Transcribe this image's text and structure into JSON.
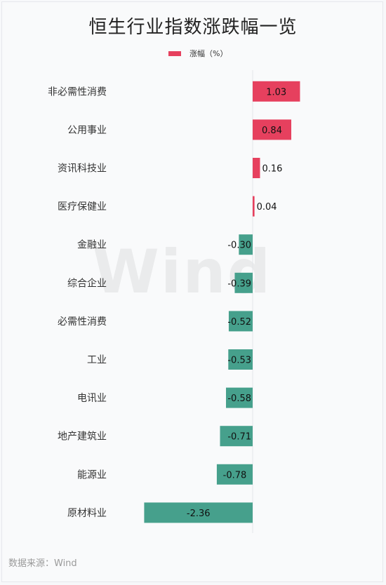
{
  "title": "恒生行业指数涨跌幅一览",
  "watermark": "Wind",
  "source": "数据来源：Wind",
  "chart_data": {
    "type": "bar",
    "orientation": "horizontal",
    "legend": {
      "position": "top",
      "entries": [
        "涨幅（%）"
      ]
    },
    "positive_color": "#e6405e",
    "negative_color": "#46a08c",
    "grid": false,
    "categories": [
      "非必需性消费",
      "公用事业",
      "资讯科技业",
      "医疗保健业",
      "金融业",
      "综合企业",
      "必需性消费",
      "工业",
      "电讯业",
      "地产建筑业",
      "能源业",
      "原材料业"
    ],
    "values": [
      1.03,
      0.84,
      0.16,
      0.04,
      -0.3,
      -0.39,
      -0.52,
      -0.53,
      -0.58,
      -0.71,
      -0.78,
      -2.36
    ],
    "labels": [
      "1.03",
      "0.84",
      "0.16",
      "0.04",
      "-0.30",
      "-0.39",
      "-0.52",
      "-0.53",
      "-0.58",
      "-0.71",
      "-0.78",
      "-2.36"
    ],
    "xlim": [
      -2.36,
      1.03
    ]
  }
}
